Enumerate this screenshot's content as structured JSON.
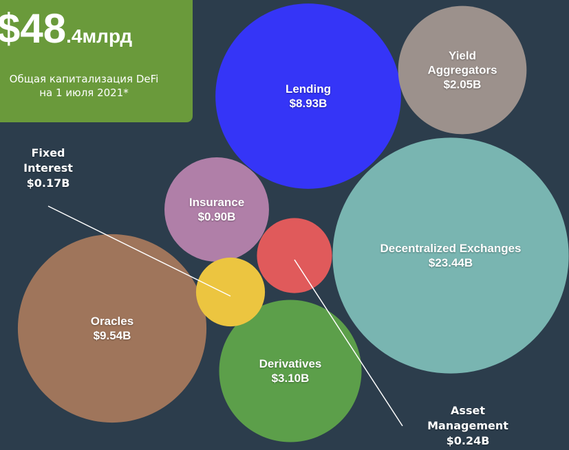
{
  "chart_data": {
    "type": "bubble",
    "headline": "$48",
    "headline_suffix": ".4млрд",
    "subtitle": [
      "Общая капитализация DeFi",
      "на 1 июля 2021*"
    ],
    "categories": [
      "Lending",
      "Yield Aggregators",
      "Decentralized Exchanges",
      "Insurance",
      "Oracles",
      "Derivatives",
      "Asset Management",
      "Fixed Interest"
    ],
    "values": [
      8.93,
      2.05,
      23.44,
      0.9,
      9.54,
      3.1,
      0.24,
      0.17
    ],
    "value_labels": [
      "$8.93B",
      "$2.05B",
      "$23.44B",
      "$0.90B",
      "$9.54B",
      "$3.10B",
      "$0.24B",
      "$0.17B"
    ],
    "colors": [
      "#3535f7",
      "#9c918c",
      "#79b5b1",
      "#b07fa8",
      "#9f755b",
      "#5c9f4a",
      "#e05a5b",
      "#ecc540"
    ]
  }
}
